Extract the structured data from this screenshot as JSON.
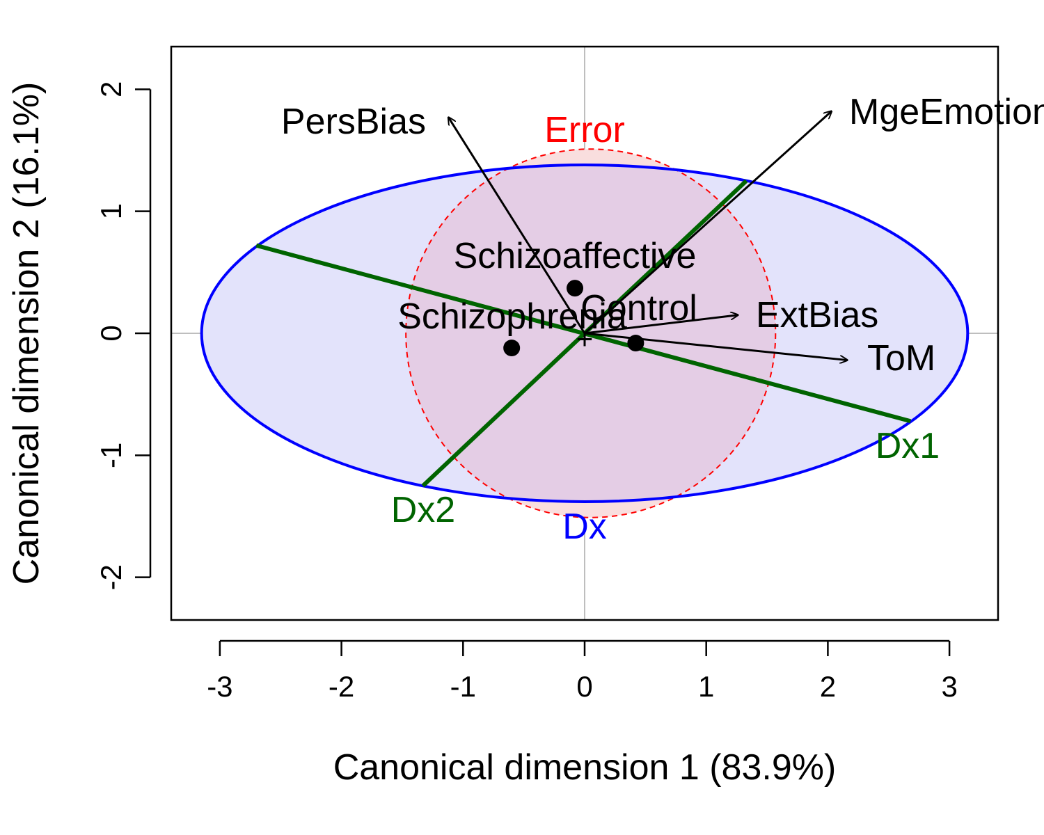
{
  "chart_data": {
    "type": "scatter",
    "xlabel": "Canonical dimension 1 (83.9%)",
    "ylabel": "Canonical dimension 2 (16.1%)",
    "xlim": [
      -3.4,
      3.4
    ],
    "ylim": [
      -2.35,
      2.35
    ],
    "xticks": [
      -3,
      -2,
      -1,
      0,
      1,
      2,
      3
    ],
    "yticks": [
      -2,
      -1,
      0,
      1,
      2
    ],
    "xtick_labels": [
      "-3",
      "-2",
      "-1",
      "0",
      "1",
      "2",
      "3"
    ],
    "ytick_labels": [
      "-2",
      "-1",
      "0",
      "1",
      "2"
    ],
    "grid": "reference lines at x=0 and y=0",
    "colors": {
      "axis": "#000000",
      "reference_line": "#bebebe",
      "hypothesis": "#0000ff",
      "hypothesis_fill": "#e3e3fb",
      "error": "#ff0000",
      "error_fill": "#f9dede",
      "overlap_fill": "#e4cde5",
      "hypothesis_axes": "#006400",
      "vectors": "#000000"
    },
    "group_means": [
      {
        "label": "Schizoaffective",
        "x": -0.08,
        "y": 0.37
      },
      {
        "label": "Control",
        "x": 0.42,
        "y": -0.08
      },
      {
        "label": "Schizophrenia",
        "x": -0.6,
        "y": -0.12
      }
    ],
    "variable_vectors": [
      {
        "label": "PersBias",
        "x": -1.12,
        "y": 1.77
      },
      {
        "label": "MgeEmotions",
        "x": 2.03,
        "y": 1.82
      },
      {
        "label": "ExtBias",
        "x": 1.26,
        "y": 0.15
      },
      {
        "label": "ToM",
        "x": 2.16,
        "y": -0.22
      }
    ],
    "ellipses": [
      {
        "label": "Error",
        "type": "error",
        "center": [
          0.05,
          0.0
        ],
        "rx": 1.52,
        "ry": 1.51,
        "style": "dashed"
      },
      {
        "label": "Dx",
        "type": "hypothesis",
        "center": [
          0.0,
          0.0
        ],
        "rx": 3.15,
        "ry": 1.38,
        "style": "solid"
      }
    ],
    "hypothesis_axes": [
      {
        "label": "Dx1",
        "from": [
          -2.7,
          0.72
        ],
        "to": [
          2.68,
          -0.72
        ]
      },
      {
        "label": "Dx2",
        "from": [
          -1.33,
          -1.25
        ],
        "to": [
          1.33,
          1.25
        ]
      }
    ],
    "origin_marker": "+"
  }
}
